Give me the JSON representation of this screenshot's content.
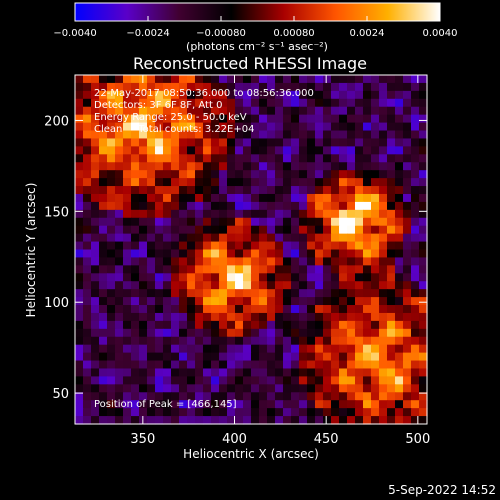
{
  "chart_data": {
    "type": "heatmap",
    "title": "Reconstructed RHESSI Image",
    "xlabel": "Heliocentric X (arcsec)",
    "ylabel": "Heliocentric Y (arcsec)",
    "xlim": [
      313,
      505
    ],
    "ylim": [
      33,
      225
    ],
    "xticks": [
      350,
      400,
      450,
      500
    ],
    "yticks": [
      50,
      100,
      150,
      200
    ],
    "colorbar": {
      "label": "(photons cm⁻² s⁻¹ asec⁻²)",
      "range": [
        -0.004,
        0.004
      ],
      "tick_values": [
        -0.004,
        -0.0024,
        -0.0008,
        0.0008,
        0.0024,
        0.004
      ],
      "tick_labels": [
        "−0.0040",
        "−0.0024",
        "−0.00080",
        "0.00080",
        "0.0024",
        "0.0040"
      ],
      "colormap": [
        "#0000ff",
        "#5a00c8",
        "#400030",
        "#000000",
        "#a80000",
        "#ff5500",
        "#ffb000",
        "#ffffff"
      ]
    },
    "annotations": [
      "22-May-2017 08:50:36.000 to 08:56:36.000",
      "Detectors: 3F 6F 8F, Att 0",
      "Energy Range: 25.0 - 50.0 keV",
      "Clean     Total counts: 3.22E+04"
    ],
    "peak_label": "Position of Peak = [466,145]",
    "peak": [
      466,
      145
    ],
    "sources": [
      {
        "x": 466,
        "y": 145,
        "amp": 1.0,
        "sigma": 13
      },
      {
        "x": 398,
        "y": 113,
        "amp": 0.8,
        "sigma": 15
      },
      {
        "x": 350,
        "y": 197,
        "amp": 0.7,
        "sigma": 24
      },
      {
        "x": 480,
        "y": 68,
        "amp": 0.6,
        "sigma": 22
      }
    ],
    "grid": false
  },
  "footer_date": "5-Sep-2022 14:52"
}
